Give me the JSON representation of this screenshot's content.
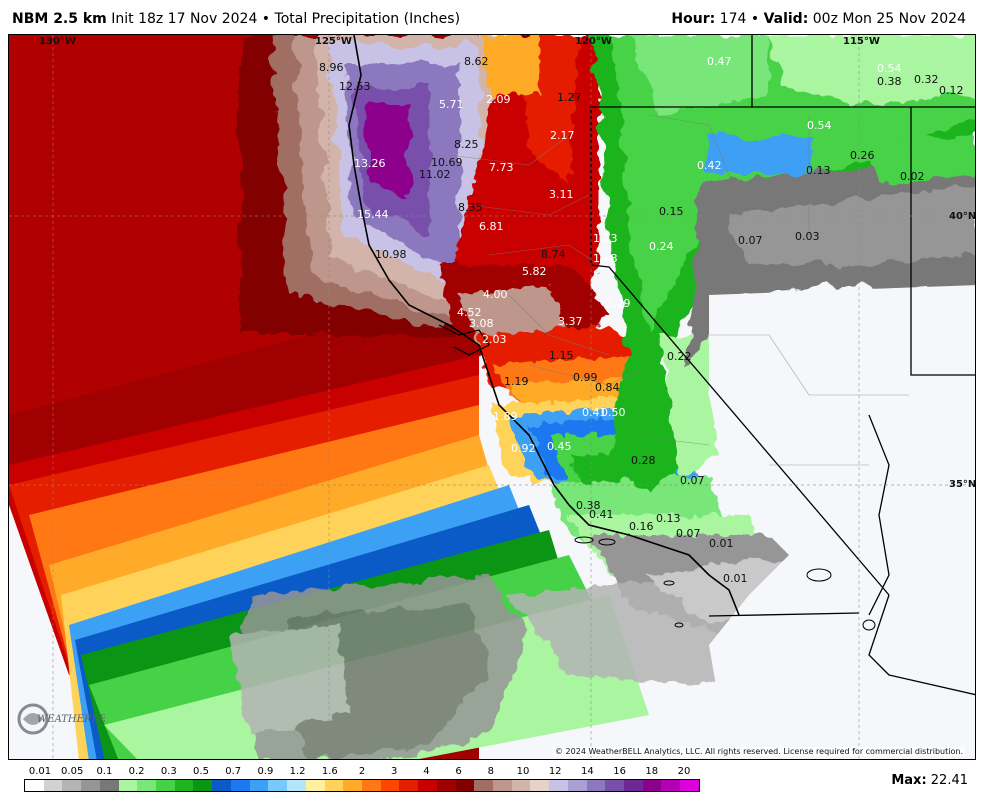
{
  "header": {
    "model": "NBM 2.5 km",
    "init": "Init 18z 17 Nov 2024",
    "separator": " • ",
    "field": "Total Precipitation (Inches)",
    "hour_label": "Hour:",
    "hour_value": "174",
    "valid_label": "Valid:",
    "valid_value": "00z Mon 25 Nov 2024"
  },
  "graticule": {
    "lon_labels": [
      "130°W",
      "125°W",
      "120°W",
      "115°W"
    ],
    "lat_labels": [
      "40°N",
      "35°N"
    ]
  },
  "values": [
    {
      "text": "8.96",
      "dark": true
    },
    {
      "text": "8.62",
      "dark": true
    },
    {
      "text": "12.53",
      "dark": true
    },
    {
      "text": "5.71",
      "dark": false
    },
    {
      "text": "2.09",
      "dark": false
    },
    {
      "text": "1.27",
      "dark": true
    },
    {
      "text": "0.47",
      "dark": false
    },
    {
      "text": "0.54",
      "dark": false
    },
    {
      "text": "0.38",
      "dark": true
    },
    {
      "text": "0.32",
      "dark": true
    },
    {
      "text": "0.12",
      "dark": true
    },
    {
      "text": "2.17",
      "dark": false
    },
    {
      "text": "8.25",
      "dark": true
    },
    {
      "text": "10.69",
      "dark": true
    },
    {
      "text": "13.26",
      "dark": false
    },
    {
      "text": "11.02",
      "dark": true
    },
    {
      "text": "7.73",
      "dark": false
    },
    {
      "text": "0.54",
      "dark": false
    },
    {
      "text": "0.42",
      "dark": false
    },
    {
      "text": "0.13",
      "dark": true
    },
    {
      "text": "0.26",
      "dark": true
    },
    {
      "text": "0.02",
      "dark": true
    },
    {
      "text": "3.11",
      "dark": false
    },
    {
      "text": "8.35",
      "dark": true
    },
    {
      "text": "15.44",
      "dark": false
    },
    {
      "text": "0.15",
      "dark": true
    },
    {
      "text": "6.81",
      "dark": false
    },
    {
      "text": "1.23",
      "dark": false
    },
    {
      "text": "0.24",
      "dark": false
    },
    {
      "text": "0.07",
      "dark": true
    },
    {
      "text": "0.03",
      "dark": true
    },
    {
      "text": "10.98",
      "dark": true
    },
    {
      "text": "8.74",
      "dark": true
    },
    {
      "text": "1.48",
      "dark": false
    },
    {
      "text": "5.82",
      "dark": false
    },
    {
      "text": "4.00",
      "dark": false
    },
    {
      "text": "2.29",
      "dark": false
    },
    {
      "text": "4.52",
      "dark": false
    },
    {
      "text": "3.08",
      "dark": false
    },
    {
      "text": "3.37",
      "dark": false
    },
    {
      "text": "2.03",
      "dark": false
    },
    {
      "text": "1.15",
      "dark": true
    },
    {
      "text": "0.22",
      "dark": true
    },
    {
      "text": "1.19",
      "dark": true
    },
    {
      "text": "0.99",
      "dark": true
    },
    {
      "text": "0.84",
      "dark": true
    },
    {
      "text": "0.41",
      "dark": false
    },
    {
      "text": "0.50",
      "dark": false
    },
    {
      "text": "1.89",
      "dark": false
    },
    {
      "text": "0.92",
      "dark": false
    },
    {
      "text": "0.45",
      "dark": false
    },
    {
      "text": "0.28",
      "dark": true
    },
    {
      "text": "0.07",
      "dark": true
    },
    {
      "text": "0.38",
      "dark": true
    },
    {
      "text": "0.41",
      "dark": true
    },
    {
      "text": "0.13",
      "dark": true
    },
    {
      "text": "0.16",
      "dark": true
    },
    {
      "text": "0.07",
      "dark": true
    },
    {
      "text": "0.01",
      "dark": true
    },
    {
      "text": "0.01",
      "dark": true
    }
  ],
  "legend": {
    "labels": [
      "0.01",
      "0.05",
      "0.1",
      "0.2",
      "0.3",
      "0.5",
      "0.7",
      "0.9",
      "1.2",
      "1.6",
      "2",
      "3",
      "4",
      "6",
      "8",
      "10",
      "12",
      "14",
      "16",
      "18",
      "20"
    ],
    "colors": [
      "#ffffff",
      "#d2d2d2",
      "#b4b4b4",
      "#969696",
      "#787878",
      "#aaf5a0",
      "#78e678",
      "#46d246",
      "#1eb41e",
      "#0a9614",
      "#0a5ac8",
      "#1e78f0",
      "#3ca0f5",
      "#78c8fa",
      "#b4e6fa",
      "#fff0a0",
      "#ffd25a",
      "#ffaa28",
      "#ff7814",
      "#ff4600",
      "#e61e00",
      "#c80000",
      "#a00000",
      "#820000",
      "#a06e64",
      "#be968c",
      "#d2b4aa",
      "#e6d2c8",
      "#c8c3e6",
      "#aaa0d2",
      "#8c78be",
      "#7850aa",
      "#6e2896",
      "#8c008c",
      "#b400b4",
      "#dc00dc"
    ]
  },
  "colors": {
    "red": "#c80000",
    "orange": "#ff7814",
    "green": "#1eb41e",
    "blue": "#1e78f0",
    "purple": "#8c78be",
    "gray": "#969696",
    "background": "#f5f7fb"
  },
  "max": {
    "label": "Max:",
    "value": "22.41"
  },
  "logo_text": "WEATHERBELL",
  "copyright": "© 2024 WeatherBELL Analytics, LLC. All rights reserved. License required for commercial distribution."
}
